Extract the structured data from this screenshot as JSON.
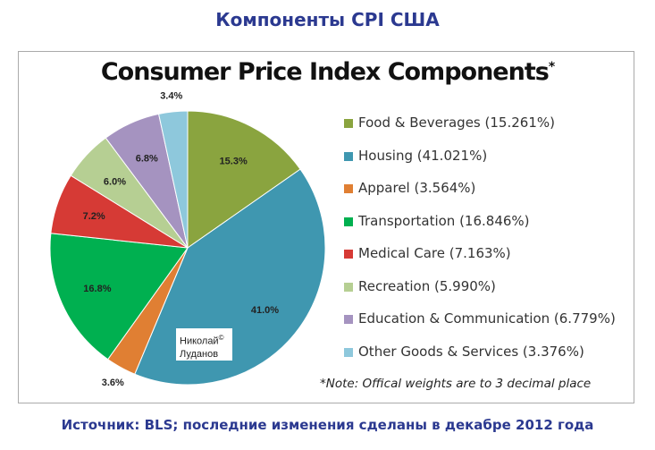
{
  "page_title": "Компоненты CPI США",
  "source": "Источник: BLS; последние изменения сделаны в декабре 2012 года",
  "watermark": {
    "line1": "Николай",
    "line2": "Луданов",
    "mark": "©"
  },
  "chart_data": {
    "type": "pie",
    "title": "Consumer Price Index Components",
    "title_mark": "*",
    "note": "*Note: Offical weights are to 3 decimal place",
    "legend_position": "right",
    "slices": [
      {
        "name": "Food & Beverages",
        "value": 15.261,
        "label": "15.3%",
        "legend": "Food & Beverages (15.261%)",
        "color": "#8aa43f"
      },
      {
        "name": "Housing",
        "value": 41.021,
        "label": "41.0%",
        "legend": "Housing (41.021%)",
        "color": "#3f97b0"
      },
      {
        "name": "Apparel",
        "value": 3.564,
        "label": "3.6%",
        "legend": "Apparel (3.564%)",
        "color": "#e07f33"
      },
      {
        "name": "Transportation",
        "value": 16.846,
        "label": "16.8%",
        "legend": "Transportation (16.846%)",
        "color": "#00b050"
      },
      {
        "name": "Medical Care",
        "value": 7.163,
        "label": "7.2%",
        "legend": "Medical Care (7.163%)",
        "color": "#d63a35"
      },
      {
        "name": "Recreation",
        "value": 5.99,
        "label": "6.0%",
        "legend": "Recreation (5.990%)",
        "color": "#b6cf93"
      },
      {
        "name": "Education & Communication",
        "value": 6.779,
        "label": "6.8%",
        "legend": "Education & Communication (6.779%)",
        "color": "#a593c0"
      },
      {
        "name": "Other Goods & Services",
        "value": 3.376,
        "label": "3.4%",
        "legend": "Other Goods & Services (3.376%)",
        "color": "#8ec8dc"
      }
    ]
  }
}
